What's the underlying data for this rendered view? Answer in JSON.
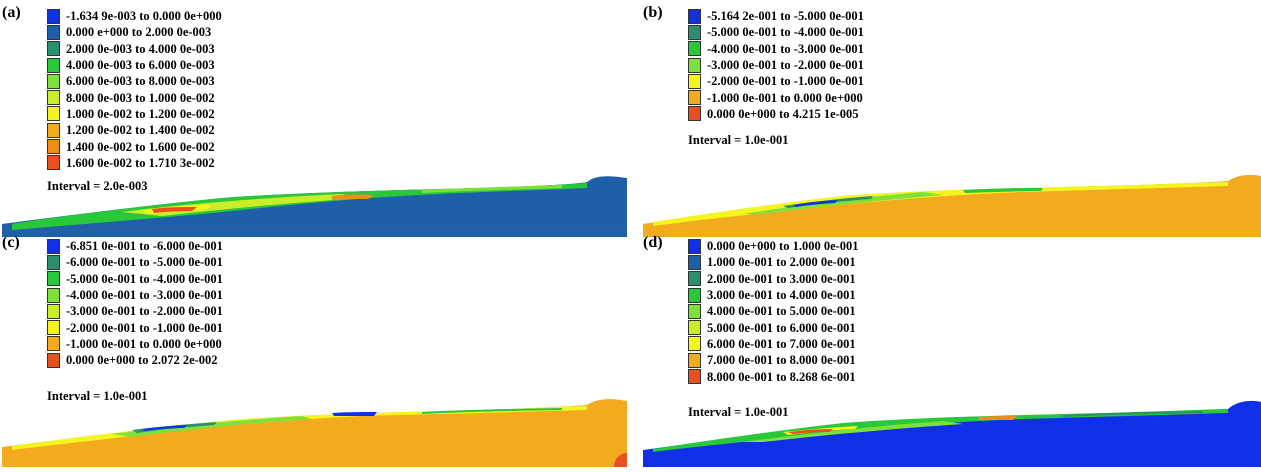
{
  "colors": {
    "blue": "#1030e6",
    "steel": "#1f5fa8",
    "teal": "#2a8f6a",
    "green": "#28c83a",
    "lightgreen": "#7ee03a",
    "yellowgreen": "#c8ee2a",
    "yellow": "#f5f51e",
    "orange": "#f2aa1e",
    "darkorange": "#f08c18",
    "red": "#e8501e"
  },
  "panels": [
    {
      "label": "(a)",
      "legend": [
        {
          "text": "-1.634 9e-003 to 0.000 0e+000",
          "color": "#1030e6"
        },
        {
          "text": "0.000 e+000 to 2.000 0e-003",
          "color": "#1f5fa8"
        },
        {
          "text": "2.000 0e-003 to 4.000 0e-003",
          "color": "#2a8f6a"
        },
        {
          "text": "4.000 0e-003 to 6.000 0e-003",
          "color": "#28c83a"
        },
        {
          "text": "6.000 0e-003 to 8.000 0e-003",
          "color": "#7ee03a"
        },
        {
          "text": "8.000 0e-003 to 1.000 0e-002",
          "color": "#c8ee2a"
        },
        {
          "text": "1.000 0e-002 to 1.200 0e-002",
          "color": "#f5f51e"
        },
        {
          "text": "1.200 0e-002 to 1.400 0e-002",
          "color": "#f2aa1e"
        },
        {
          "text": "1.400 0e-002 to 1.600 0e-002",
          "color": "#f08c18"
        },
        {
          "text": "1.600 0e-002 to 1.710 3e-002",
          "color": "#e8501e"
        }
      ],
      "interval": "Interval = 2.0e-003"
    },
    {
      "label": "(b)",
      "legend": [
        {
          "text": "-5.164 2e-001 to -5.000 0e-001",
          "color": "#1030e6"
        },
        {
          "text": "-5.000 0e-001 to -4.000 0e-001",
          "color": "#2a8f6a"
        },
        {
          "text": "-4.000 0e-001 to -3.000 0e-001",
          "color": "#28c83a"
        },
        {
          "text": "-3.000 0e-001 to -2.000 0e-001",
          "color": "#7ee03a"
        },
        {
          "text": "-2.000 0e-001 to -1.000 0e-001",
          "color": "#f5f51e"
        },
        {
          "text": "-1.000 0e-001 to 0.000 0e+000",
          "color": "#f2aa1e"
        },
        {
          "text": "0.000 0e+000 to 4.215 1e-005",
          "color": "#e8501e"
        }
      ],
      "interval": "Interval = 1.0e-001"
    },
    {
      "label": "(c)",
      "legend": [
        {
          "text": "-6.851 0e-001 to -6.000 0e-001",
          "color": "#1030e6"
        },
        {
          "text": "-6.000 0e-001 to -5.000 0e-001",
          "color": "#2a8f6a"
        },
        {
          "text": "-5.000 0e-001 to -4.000 0e-001",
          "color": "#28c83a"
        },
        {
          "text": "-4.000 0e-001 to -3.000 0e-001",
          "color": "#7ee03a"
        },
        {
          "text": "-3.000 0e-001 to -2.000 0e-001",
          "color": "#c8ee2a"
        },
        {
          "text": "-2.000 0e-001 to -1.000 0e-001",
          "color": "#f5f51e"
        },
        {
          "text": "-1.000 0e-001 to 0.000 0e+000",
          "color": "#f2aa1e"
        },
        {
          "text": "0.000 0e+000 to 2.072 2e-002",
          "color": "#e8501e"
        }
      ],
      "interval": "Interval = 1.0e-001"
    },
    {
      "label": "(d)",
      "legend": [
        {
          "text": "0.000 0e+000 to 1.000 0e-001",
          "color": "#1030e6"
        },
        {
          "text": "1.000 0e-001 to 2.000 0e-001",
          "color": "#1f5fa8"
        },
        {
          "text": "2.000 0e-001 to 3.000 0e-001",
          "color": "#2a8f6a"
        },
        {
          "text": "3.000 0e-001 to 4.000 0e-001",
          "color": "#28c83a"
        },
        {
          "text": "4.000 0e-001 to 5.000 0e-001",
          "color": "#7ee03a"
        },
        {
          "text": "5.000 0e-001 to 6.000 0e-001",
          "color": "#c8ee2a"
        },
        {
          "text": "6.000 0e-001 to 7.000 0e-001",
          "color": "#f5f51e"
        },
        {
          "text": "7.000 0e-001 to 8.000 0e-001",
          "color": "#f2aa1e"
        },
        {
          "text": "8.000 0e-001 to 8.268 6e-001",
          "color": "#e8501e"
        }
      ],
      "interval": "Interval = 1.0e-001"
    }
  ]
}
